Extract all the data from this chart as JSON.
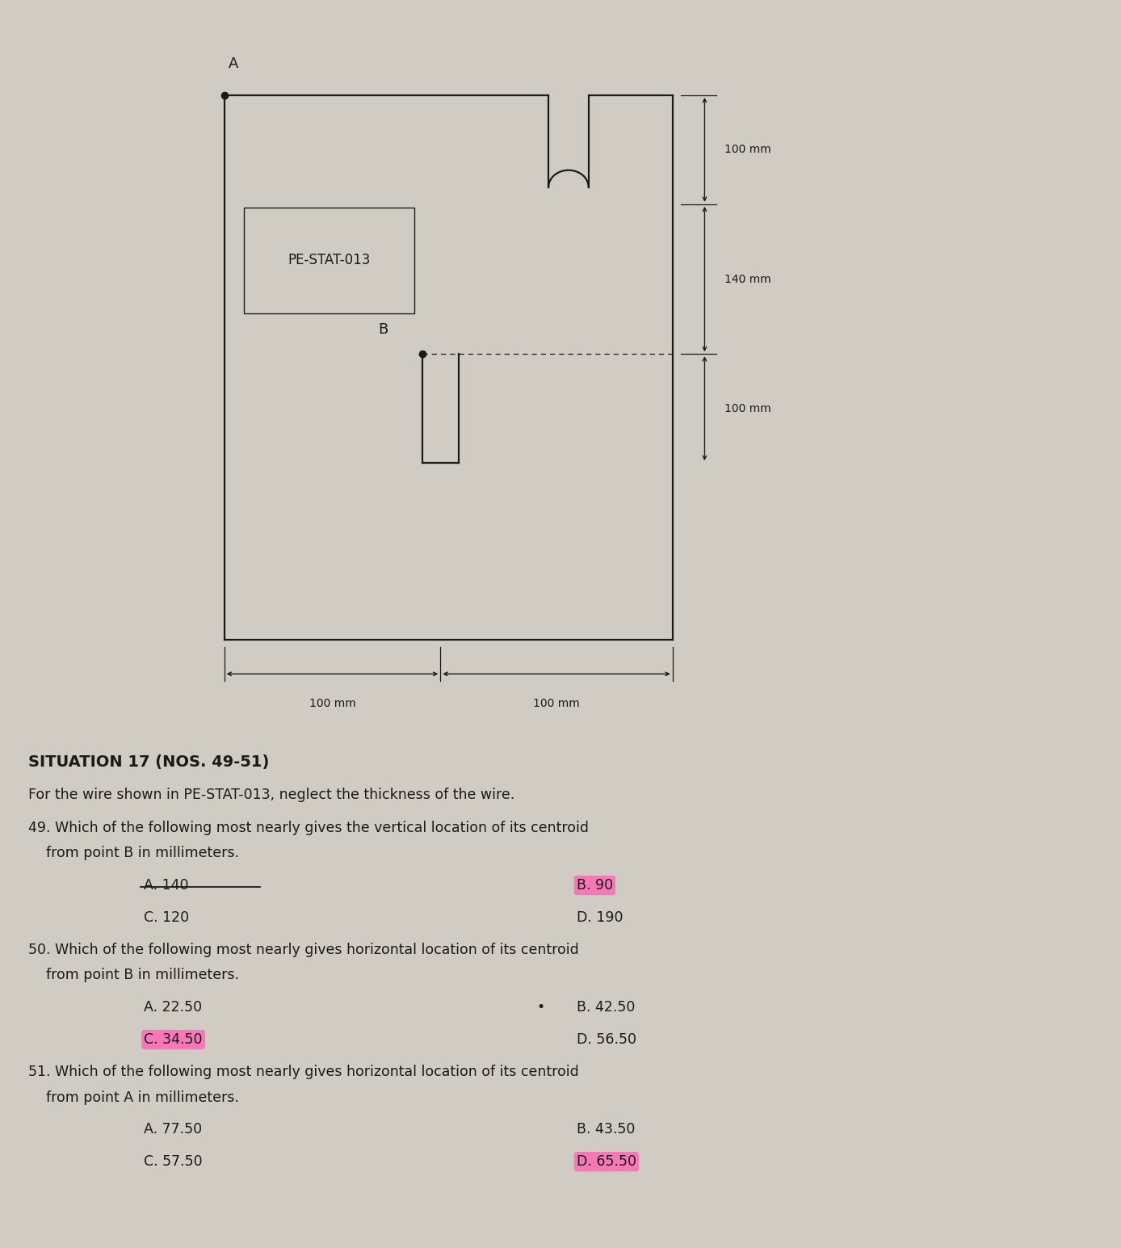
{
  "bg_color": "#d0ccc4",
  "wire_color": "#1a1a1a",
  "text_color": "#1a1a1a",
  "situation_title": "SITUATION 17 (NOS. 49-51)",
  "situation_text": "For the wire shown in PE-STAT-013, neglect the thickness of the wire.",
  "q49_line1": "49. Which of the following most nearly gives the vertical location of its centroid",
  "q49_line2": "    from point B in millimeters.",
  "q49_A": "A. 140",
  "q49_B": "B. 90",
  "q49_C": "C. 120",
  "q49_D": "D. 190",
  "q50_line1": "50. Which of the following most nearly gives horizontal location of its centroid",
  "q50_line2": "    from point B in millimeters.",
  "q50_A": "A. 22.50",
  "q50_B": "B. 42.50",
  "q50_C": "C. 34.50",
  "q50_D": "D. 56.50",
  "q51_line1": "51. Which of the following most nearly gives horizontal location of its centroid",
  "q51_line2": "    from point A in millimeters.",
  "q51_A": "A. 77.50",
  "q51_B": "B. 43.50",
  "q51_C": "C. 57.50",
  "q51_D": "D. 65.50",
  "highlight_color": "#ff69b4",
  "label_100mm_top": "100 mm",
  "label_140mm": "140 mm",
  "label_100mm_bot": "100 mm",
  "label_100mm_horiz_left": "100 mm",
  "label_100mm_horiz_right": "100 mm",
  "label_A": "A",
  "label_B": "B",
  "pe_stat_label": "PE-STAT-013"
}
